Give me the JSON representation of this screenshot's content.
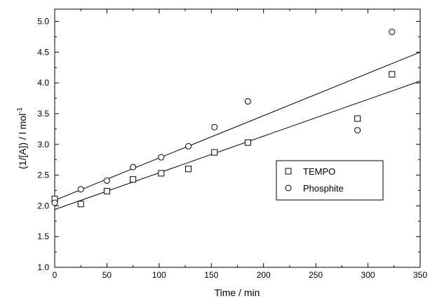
{
  "chart_data": {
    "type": "scatter",
    "xlabel": "Time / min",
    "ylabel": "(1/[A]) / l mol",
    "ylabel_superscript": "-1",
    "xlim": [
      0,
      350
    ],
    "ylim": [
      1.0,
      5.2
    ],
    "xticks": [
      "0",
      "50",
      "100",
      "150",
      "200",
      "250",
      "300",
      "350"
    ],
    "yticks": [
      "1.0",
      "1.5",
      "2.0",
      "2.5",
      "3.0",
      "3.5",
      "4.0",
      "4.5",
      "5.0"
    ],
    "grid": false,
    "legend_position": "center-right",
    "series": [
      {
        "name": "TEMPO",
        "marker": "square",
        "x": [
          0,
          25,
          50,
          75,
          102,
          128,
          153,
          185,
          290,
          323
        ],
        "y": [
          2.11,
          2.03,
          2.24,
          2.43,
          2.53,
          2.6,
          2.87,
          3.03,
          3.42,
          4.14
        ],
        "fit_line": {
          "x": [
            0,
            350
          ],
          "y": [
            1.94,
            4.03
          ]
        }
      },
      {
        "name": "Phosphite",
        "marker": "circle",
        "x": [
          0,
          25,
          50,
          75,
          102,
          128,
          153,
          185,
          290,
          323
        ],
        "y": [
          2.05,
          2.27,
          2.41,
          2.63,
          2.79,
          2.97,
          3.28,
          3.7,
          3.23,
          4.83
        ],
        "fit_line": {
          "x": [
            0,
            350
          ],
          "y": [
            2.09,
            4.5
          ]
        }
      }
    ]
  }
}
